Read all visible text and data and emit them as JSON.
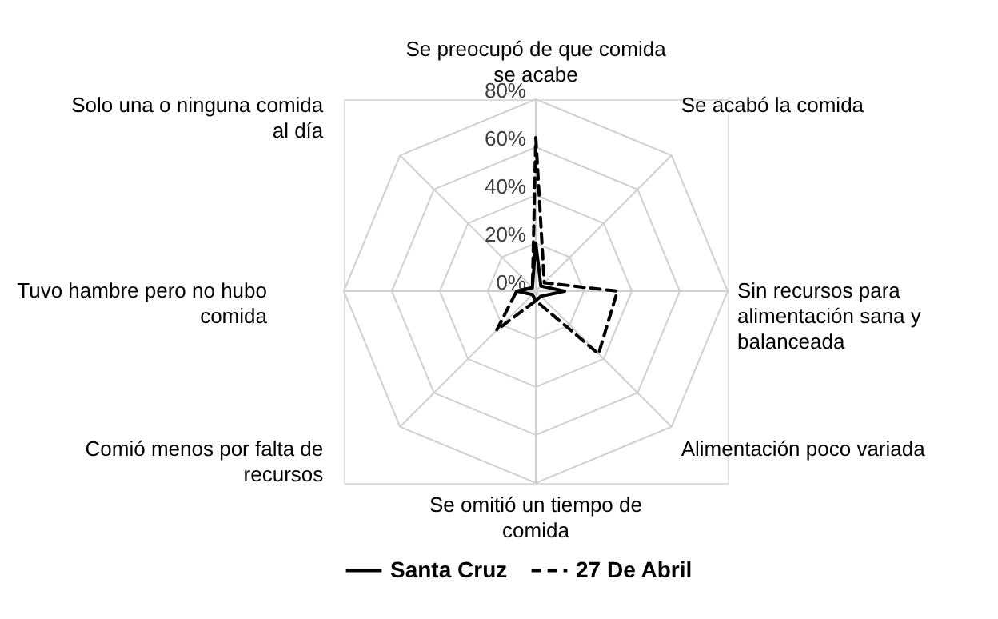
{
  "chart_data": {
    "type": "radar",
    "categories": [
      "Se preocupó de que comida se acabe",
      "Se acabó la comida",
      "Sin recursos para alimentación sana y balanceada",
      "Alimentación poco variada",
      "Se omitió un tiempo de comida",
      "Comió menos por falta de recursos",
      "Tuvo hambre pero no hubo comida",
      "Solo una o ninguna comida al día"
    ],
    "series": [
      {
        "name": "Santa Cruz",
        "color": "#000000",
        "line_style": "solid",
        "values": [
          20,
          3,
          12,
          3,
          4,
          2,
          8,
          2
        ]
      },
      {
        "name": "27 De Abril",
        "color": "#000000",
        "line_style": "dashed",
        "values": [
          64,
          5,
          34,
          37,
          4,
          23,
          8,
          2
        ]
      }
    ],
    "ylim": [
      0,
      80
    ],
    "yticks": [
      {
        "value": 0,
        "label": "0%"
      },
      {
        "value": 20,
        "label": "20%"
      },
      {
        "value": 40,
        "label": "40%"
      },
      {
        "value": 60,
        "label": "60%"
      },
      {
        "value": 80,
        "label": "80%"
      }
    ],
    "grid": true,
    "legend": "bottom",
    "marker": "none"
  }
}
